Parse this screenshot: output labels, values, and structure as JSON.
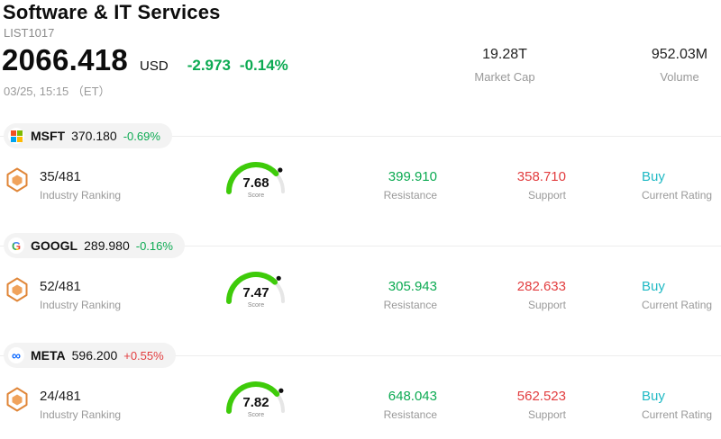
{
  "header": {
    "title": "Software & IT Services",
    "subtitle": "LIST1017"
  },
  "quote": {
    "price": "2066.418",
    "currency": "USD",
    "change": "-2.973",
    "change_pct": "-0.14%",
    "direction": "down",
    "timestamp": "03/25, 15:15 （ET）"
  },
  "stats": {
    "market_cap": {
      "value": "19.28T",
      "label": "Market Cap"
    },
    "volume": {
      "value": "952.03M",
      "label": "Volume"
    }
  },
  "colors": {
    "down_green": "#0caa52",
    "up_red": "#e23d3f",
    "buy_teal": "#1fb9c4",
    "gauge_green": "#3ecb0a",
    "shield_orange": "#e08638"
  },
  "stocks": [
    {
      "ticker": "MSFT",
      "logo": "microsoft-logo",
      "price": "370.180",
      "change": "-0.69%",
      "direction": "down",
      "ranking": "35/481",
      "ranking_label": "Industry Ranking",
      "score": 7.68,
      "score_label": "Score",
      "resistance": "399.910",
      "resistance_label": "Resistance",
      "support": "358.710",
      "support_label": "Support",
      "rating": "Buy",
      "rating_label": "Current Rating"
    },
    {
      "ticker": "GOOGL",
      "logo": "google-logo",
      "price": "289.980",
      "change": "-0.16%",
      "direction": "down",
      "ranking": "52/481",
      "ranking_label": "Industry Ranking",
      "score": 7.47,
      "score_label": "Score",
      "resistance": "305.943",
      "resistance_label": "Resistance",
      "support": "282.633",
      "support_label": "Support",
      "rating": "Buy",
      "rating_label": "Current Rating"
    },
    {
      "ticker": "META",
      "logo": "meta-logo",
      "price": "596.200",
      "change": "+0.55%",
      "direction": "up",
      "ranking": "24/481",
      "ranking_label": "Industry Ranking",
      "score": 7.82,
      "score_label": "Score",
      "resistance": "648.043",
      "resistance_label": "Resistance",
      "support": "562.523",
      "support_label": "Support",
      "rating": "Buy",
      "rating_label": "Current Rating"
    }
  ]
}
